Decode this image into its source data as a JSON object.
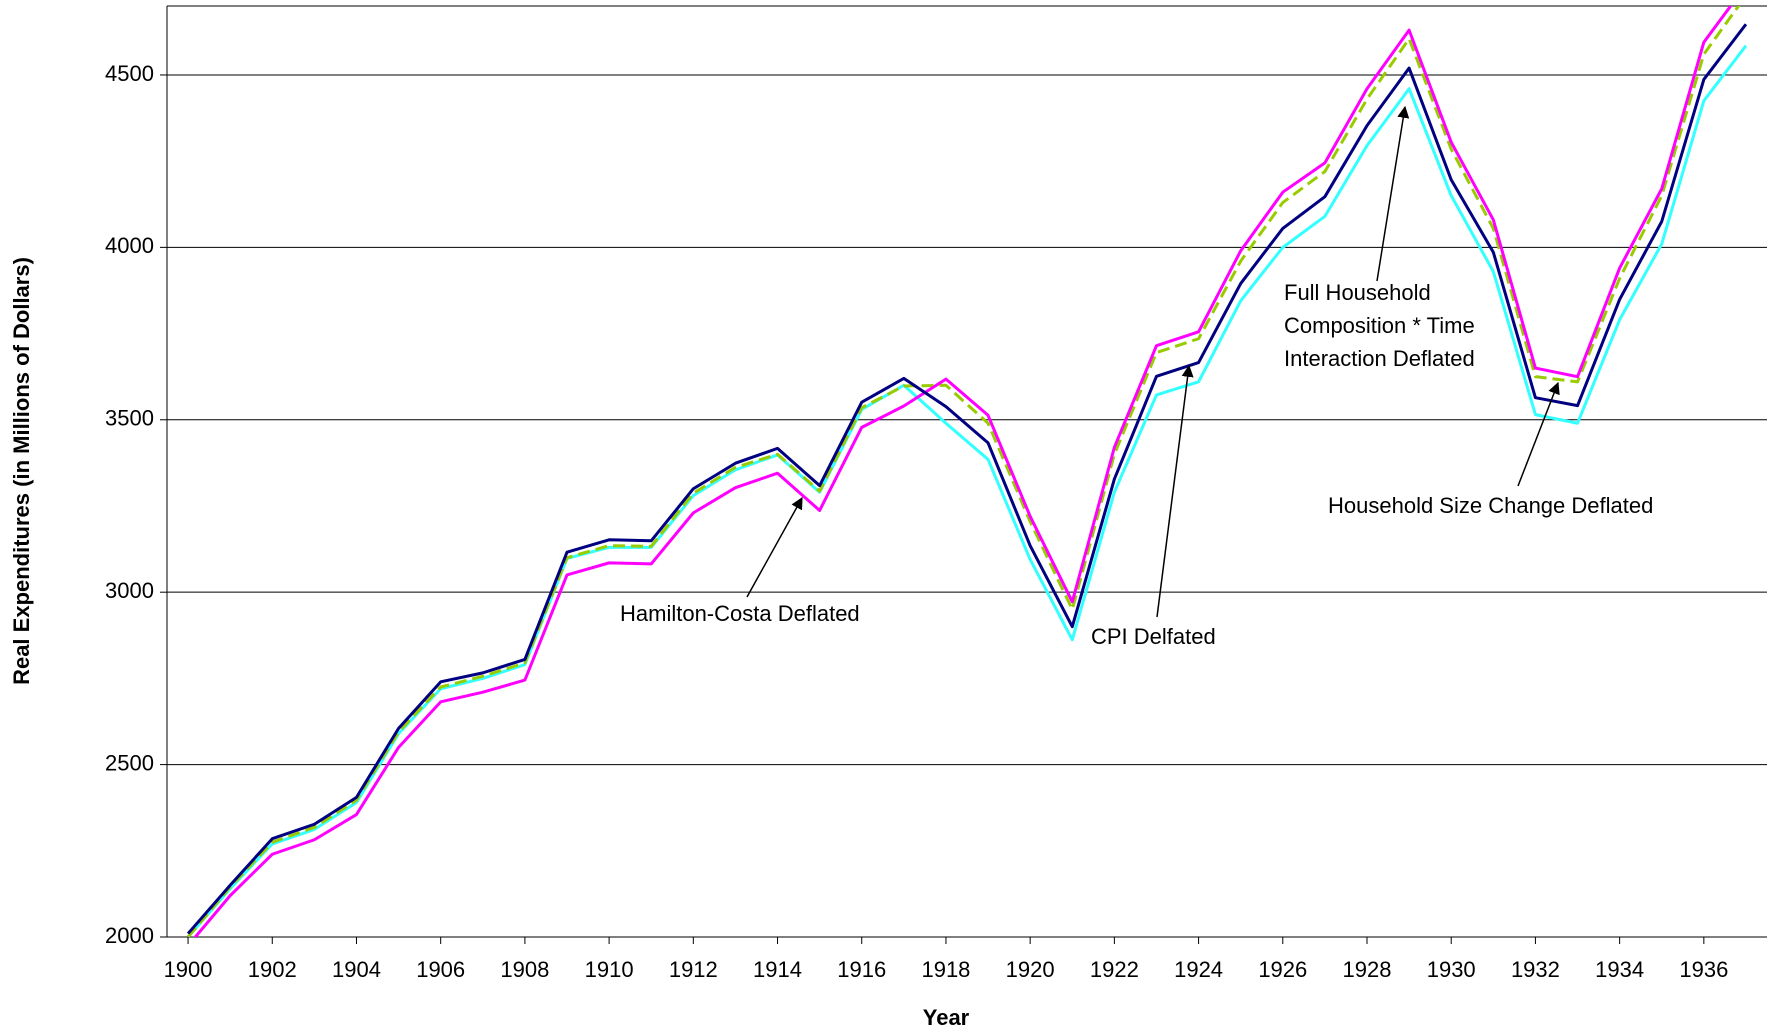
{
  "chart_data": {
    "type": "line",
    "x_label": "Year",
    "y_label": "Real Expenditures (in Millions of Dollars)",
    "x": [
      1900,
      1901,
      1902,
      1903,
      1904,
      1905,
      1906,
      1907,
      1908,
      1909,
      1910,
      1911,
      1912,
      1913,
      1914,
      1915,
      1916,
      1917,
      1918,
      1919,
      1920,
      1921,
      1922,
      1923,
      1924,
      1925,
      1926,
      1927,
      1928,
      1929,
      1930,
      1931,
      1932,
      1933,
      1934,
      1935,
      1936,
      1937
    ],
    "xlim": [
      1899.5,
      1937.5
    ],
    "xticks": [
      1900,
      1902,
      1904,
      1906,
      1908,
      1910,
      1912,
      1914,
      1916,
      1918,
      1920,
      1922,
      1924,
      1926,
      1928,
      1930,
      1932,
      1934,
      1936
    ],
    "ylim": [
      2000,
      4700
    ],
    "yticks": [
      2000,
      2500,
      3000,
      3500,
      4000,
      4500
    ],
    "grid": true,
    "series": [
      {
        "name": "CPI Delfated",
        "color": "#000080",
        "dashed": false,
        "values": [
          2010,
          2150,
          2285,
          2327,
          2405,
          2605,
          2740,
          2766,
          2805,
          3116,
          3152,
          3149,
          3300,
          3374,
          3417,
          3309,
          3551,
          3620,
          3538,
          3433,
          3135,
          2900,
          3328,
          3626,
          3666,
          3895,
          4055,
          4147,
          4353,
          4520,
          4196,
          3986,
          3564,
          3541,
          3849,
          4075,
          4487,
          4647
        ]
      },
      {
        "name": "Full Household Composition * Time Interaction Deflated",
        "color": "#33FFFF",
        "dashed": false,
        "values": [
          2000,
          2140,
          2270,
          2312,
          2390,
          2590,
          2720,
          2750,
          2790,
          3098,
          3130,
          3130,
          3280,
          3355,
          3398,
          3290,
          3530,
          3600,
          3490,
          3385,
          3095,
          2862,
          3290,
          3572,
          3610,
          3845,
          4000,
          4090,
          4295,
          4460,
          4150,
          3930,
          3515,
          3490,
          3790,
          4010,
          4425,
          4585
        ]
      },
      {
        "name": "Hamilton-Costa Deflated",
        "color": "#FF00FF",
        "dashed": false,
        "values": [
          1975,
          2120,
          2240,
          2282,
          2355,
          2550,
          2682,
          2710,
          2745,
          3050,
          3085,
          3082,
          3230,
          3303,
          3345,
          3237,
          3478,
          3540,
          3618,
          3513,
          3220,
          2972,
          3420,
          3715,
          3755,
          3990,
          4160,
          4245,
          4460,
          4630,
          4305,
          4080,
          3650,
          3625,
          3940,
          4170,
          4595,
          4760
        ]
      },
      {
        "name": "Household Size Change Deflated",
        "color": "#99CC00",
        "dashed": true,
        "values": [
          2000,
          2145,
          2275,
          2318,
          2397,
          2595,
          2725,
          2756,
          2795,
          3100,
          3135,
          3133,
          3287,
          3362,
          3400,
          3293,
          3535,
          3598,
          3600,
          3490,
          3205,
          2950,
          3400,
          3695,
          3735,
          3960,
          4130,
          4220,
          4430,
          4605,
          4285,
          4055,
          3625,
          3610,
          3910,
          4150,
          4560,
          4730
        ]
      }
    ]
  }
}
